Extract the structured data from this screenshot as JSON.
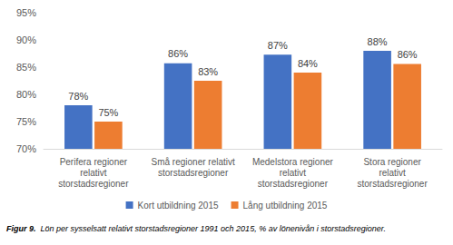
{
  "chart_data": {
    "type": "bar",
    "title": "Figur 9. Lön per sysselsatt relativt storstadsregioner 1991 och 2015, % av lönenivån i storstadsregioner.",
    "categories": [
      "Perifera regioner\nrelativt\nstorstadsregioner",
      "Små regioner relativt\nstorstadsregioner",
      "Medelstora regioner\nrelativt\nstorstadsregioner",
      "Stora regioner\nrelativt\nstorstadsregioner"
    ],
    "series": [
      {
        "name": "Kort utbildning 2015",
        "color": "#4472c4",
        "values": [
          78,
          85.7,
          87.3,
          88
        ],
        "value_labels": [
          "78%",
          "86%",
          "87%",
          "88%"
        ]
      },
      {
        "name": "Lång utbildning 2015",
        "color": "#ed7d31",
        "values": [
          75,
          82.5,
          84,
          85.6
        ],
        "value_labels": [
          "75%",
          "83%",
          "84%",
          "86%"
        ]
      }
    ],
    "ylim": [
      70,
      95
    ],
    "yticks": [
      {
        "value": 70,
        "label": "70%"
      },
      {
        "value": 75,
        "label": "75%"
      },
      {
        "value": 80,
        "label": "80%"
      },
      {
        "value": 85,
        "label": "85%"
      },
      {
        "value": 90,
        "label": "90%"
      },
      {
        "value": 95,
        "label": "95%"
      }
    ],
    "grid": false,
    "legend": "bottom",
    "data_labels": true
  }
}
